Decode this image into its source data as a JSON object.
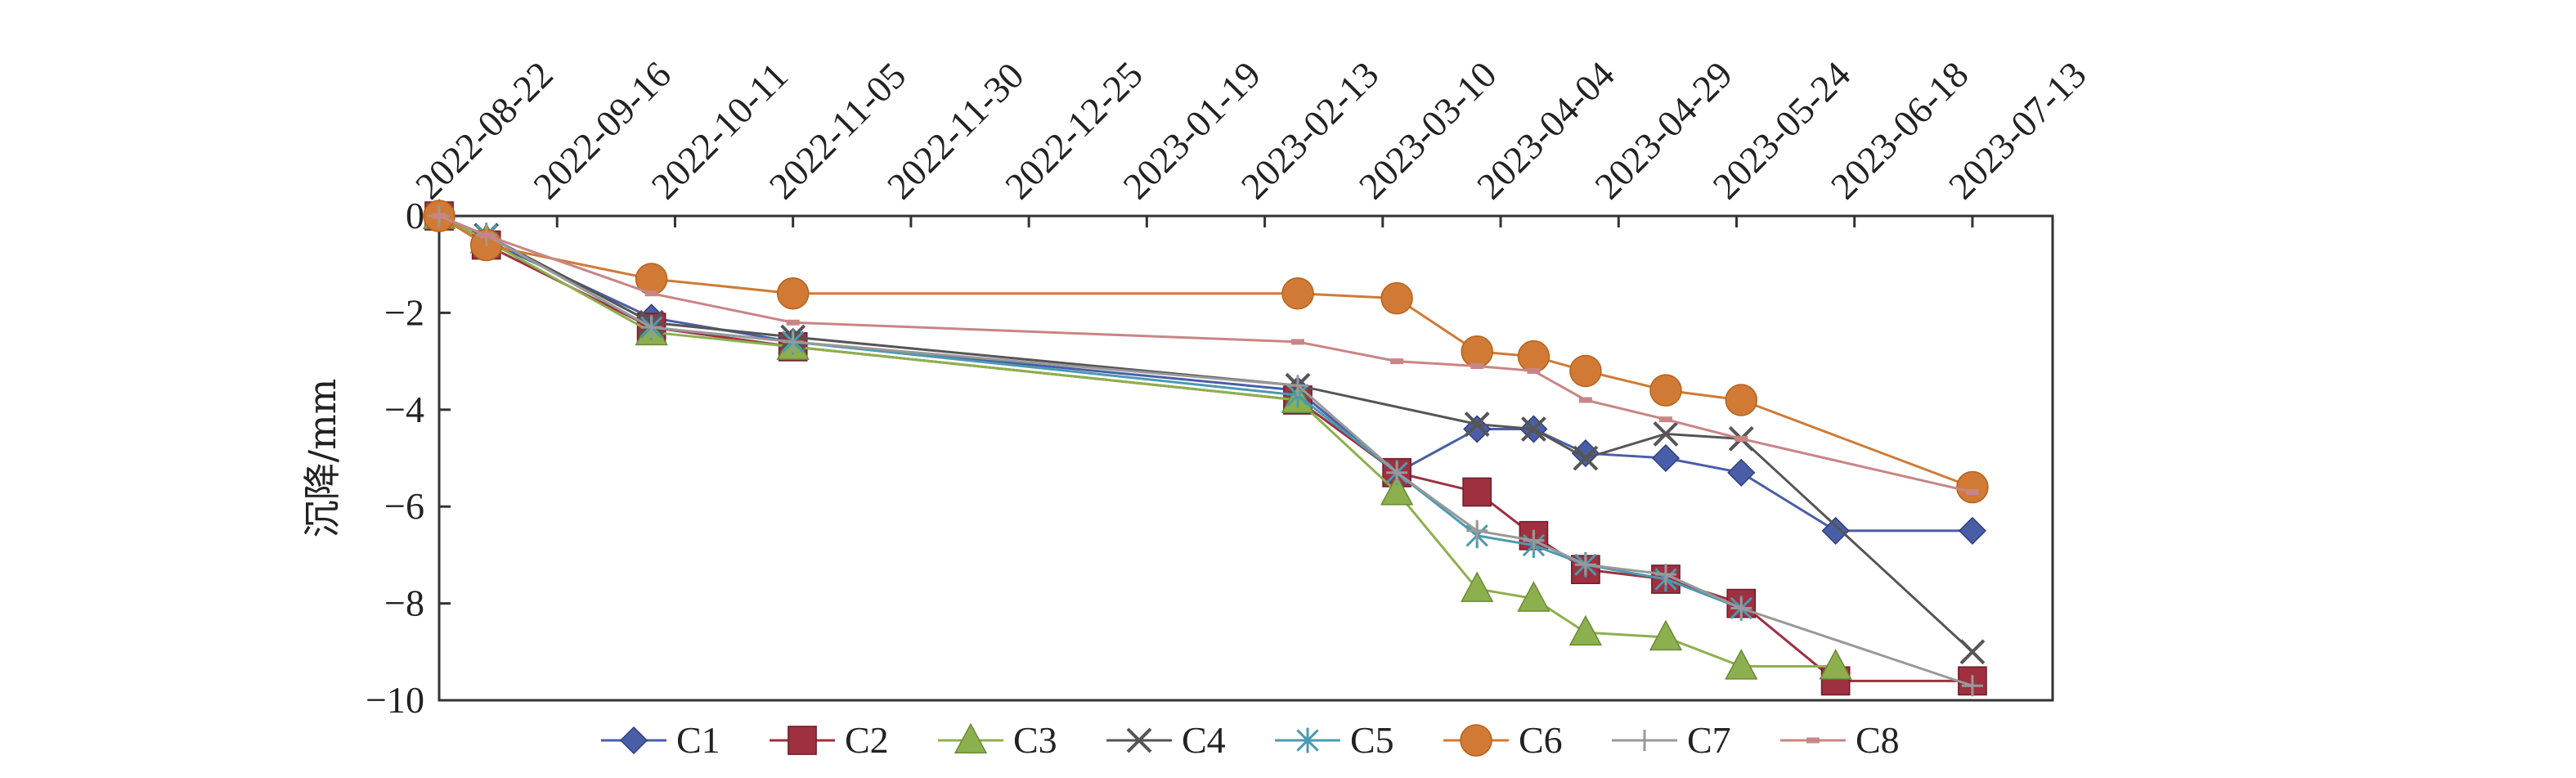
{
  "chart_data": {
    "type": "line",
    "title": "",
    "xlabel": "",
    "ylabel": "沉降/mm",
    "x_tick_labels": [
      "2022-08-22",
      "2022-09-16",
      "2022-10-11",
      "2022-11-05",
      "2022-11-30",
      "2022-12-25",
      "2023-01-19",
      "2023-02-13",
      "2023-03-10",
      "2023-04-04",
      "2023-04-29",
      "2023-05-24",
      "2023-06-18",
      "2023-07-13"
    ],
    "xlim": [
      "2022-08-22",
      "2023-07-30"
    ],
    "ylim": [
      -10,
      0
    ],
    "y_ticks": [
      0,
      -2,
      -4,
      -6,
      -8,
      -10
    ],
    "y_tick_labels": [
      "0",
      "−2",
      "−4",
      "−6",
      "−8",
      "−10"
    ],
    "grid": false,
    "legend_position": "bottom",
    "series": [
      {
        "name": "C1",
        "color": "#4a5ea8",
        "marker": "diamond",
        "x": [
          "2022-08-22",
          "2022-09-01",
          "2022-10-06",
          "2022-11-05",
          "2023-02-20",
          "2023-03-13",
          "2023-03-30",
          "2023-04-11",
          "2023-04-22",
          "2023-05-09",
          "2023-05-25",
          "2023-06-14",
          "2023-07-13"
        ],
        "y": [
          0,
          -0.5,
          -2.1,
          -2.6,
          -3.6,
          -5.3,
          -4.4,
          -4.4,
          -4.9,
          -5.0,
          -5.3,
          -6.5,
          -6.5
        ]
      },
      {
        "name": "C2",
        "color": "#9e3040",
        "marker": "square",
        "x": [
          "2022-08-22",
          "2022-09-01",
          "2022-10-06",
          "2022-11-05",
          "2023-02-20",
          "2023-03-13",
          "2023-03-30",
          "2023-04-11",
          "2023-04-22",
          "2023-05-09",
          "2023-05-25",
          "2023-06-14",
          "2023-07-13"
        ],
        "y": [
          0,
          -0.6,
          -2.3,
          -2.7,
          -3.8,
          -5.3,
          -5.7,
          -6.6,
          -7.3,
          -7.5,
          -8.0,
          -9.6,
          -9.6
        ]
      },
      {
        "name": "C3",
        "color": "#8db04e",
        "marker": "triangle",
        "x": [
          "2022-08-22",
          "2022-09-01",
          "2022-10-06",
          "2022-11-05",
          "2023-02-20",
          "2023-03-13",
          "2023-03-30",
          "2023-04-11",
          "2023-04-22",
          "2023-05-09",
          "2023-05-25",
          "2023-06-14"
        ],
        "y": [
          0,
          -0.5,
          -2.4,
          -2.7,
          -3.8,
          -5.7,
          -7.7,
          -7.9,
          -8.6,
          -8.7,
          -9.3,
          -9.3
        ]
      },
      {
        "name": "C4",
        "color": "#555555",
        "marker": "x",
        "x": [
          "2022-08-22",
          "2022-09-01",
          "2022-10-06",
          "2022-11-05",
          "2023-02-20",
          "2023-03-30",
          "2023-04-11",
          "2023-04-22",
          "2023-05-09",
          "2023-05-25",
          "2023-07-13"
        ],
        "y": [
          0,
          -0.4,
          -2.2,
          -2.5,
          -3.5,
          -4.3,
          -4.4,
          -5.0,
          -4.5,
          -4.6,
          -9.0
        ]
      },
      {
        "name": "C5",
        "color": "#4a9ab0",
        "marker": "asterisk",
        "x": [
          "2022-08-22",
          "2022-09-01",
          "2022-10-06",
          "2022-11-05",
          "2023-02-20",
          "2023-03-13",
          "2023-03-30",
          "2023-04-11",
          "2023-04-22",
          "2023-05-09",
          "2023-05-25"
        ],
        "y": [
          0,
          -0.4,
          -2.3,
          -2.6,
          -3.7,
          -5.3,
          -6.6,
          -6.8,
          -7.2,
          -7.5,
          -8.1
        ]
      },
      {
        "name": "C6",
        "color": "#d07a35",
        "marker": "circle",
        "x": [
          "2022-08-22",
          "2022-09-01",
          "2022-10-06",
          "2022-11-05",
          "2023-02-20",
          "2023-03-13",
          "2023-03-30",
          "2023-04-11",
          "2023-04-22",
          "2023-05-09",
          "2023-05-25",
          "2023-07-13"
        ],
        "y": [
          0,
          -0.6,
          -1.3,
          -1.6,
          -1.6,
          -1.7,
          -2.8,
          -2.9,
          -3.2,
          -3.6,
          -3.8,
          -5.6
        ]
      },
      {
        "name": "C7",
        "color": "#999999",
        "marker": "plus",
        "x": [
          "2022-08-22",
          "2022-09-01",
          "2022-10-06",
          "2022-11-05",
          "2023-02-20",
          "2023-03-13",
          "2023-03-30",
          "2023-04-11",
          "2023-04-22",
          "2023-05-09",
          "2023-05-25",
          "2023-07-13"
        ],
        "y": [
          0,
          -0.4,
          -2.3,
          -2.6,
          -3.5,
          -5.3,
          -6.5,
          -6.7,
          -7.2,
          -7.4,
          -8.1,
          -9.7
        ]
      },
      {
        "name": "C8",
        "color": "#c98585",
        "marker": "dash",
        "x": [
          "2022-08-22",
          "2022-09-01",
          "2022-10-06",
          "2022-11-05",
          "2023-02-20",
          "2023-03-13",
          "2023-03-30",
          "2023-04-11",
          "2023-04-22",
          "2023-05-09",
          "2023-05-25",
          "2023-07-13"
        ],
        "y": [
          0,
          -0.4,
          -1.6,
          -2.2,
          -2.6,
          -3.0,
          -3.1,
          -3.2,
          -3.8,
          -4.2,
          -4.6,
          -5.7
        ]
      }
    ]
  }
}
